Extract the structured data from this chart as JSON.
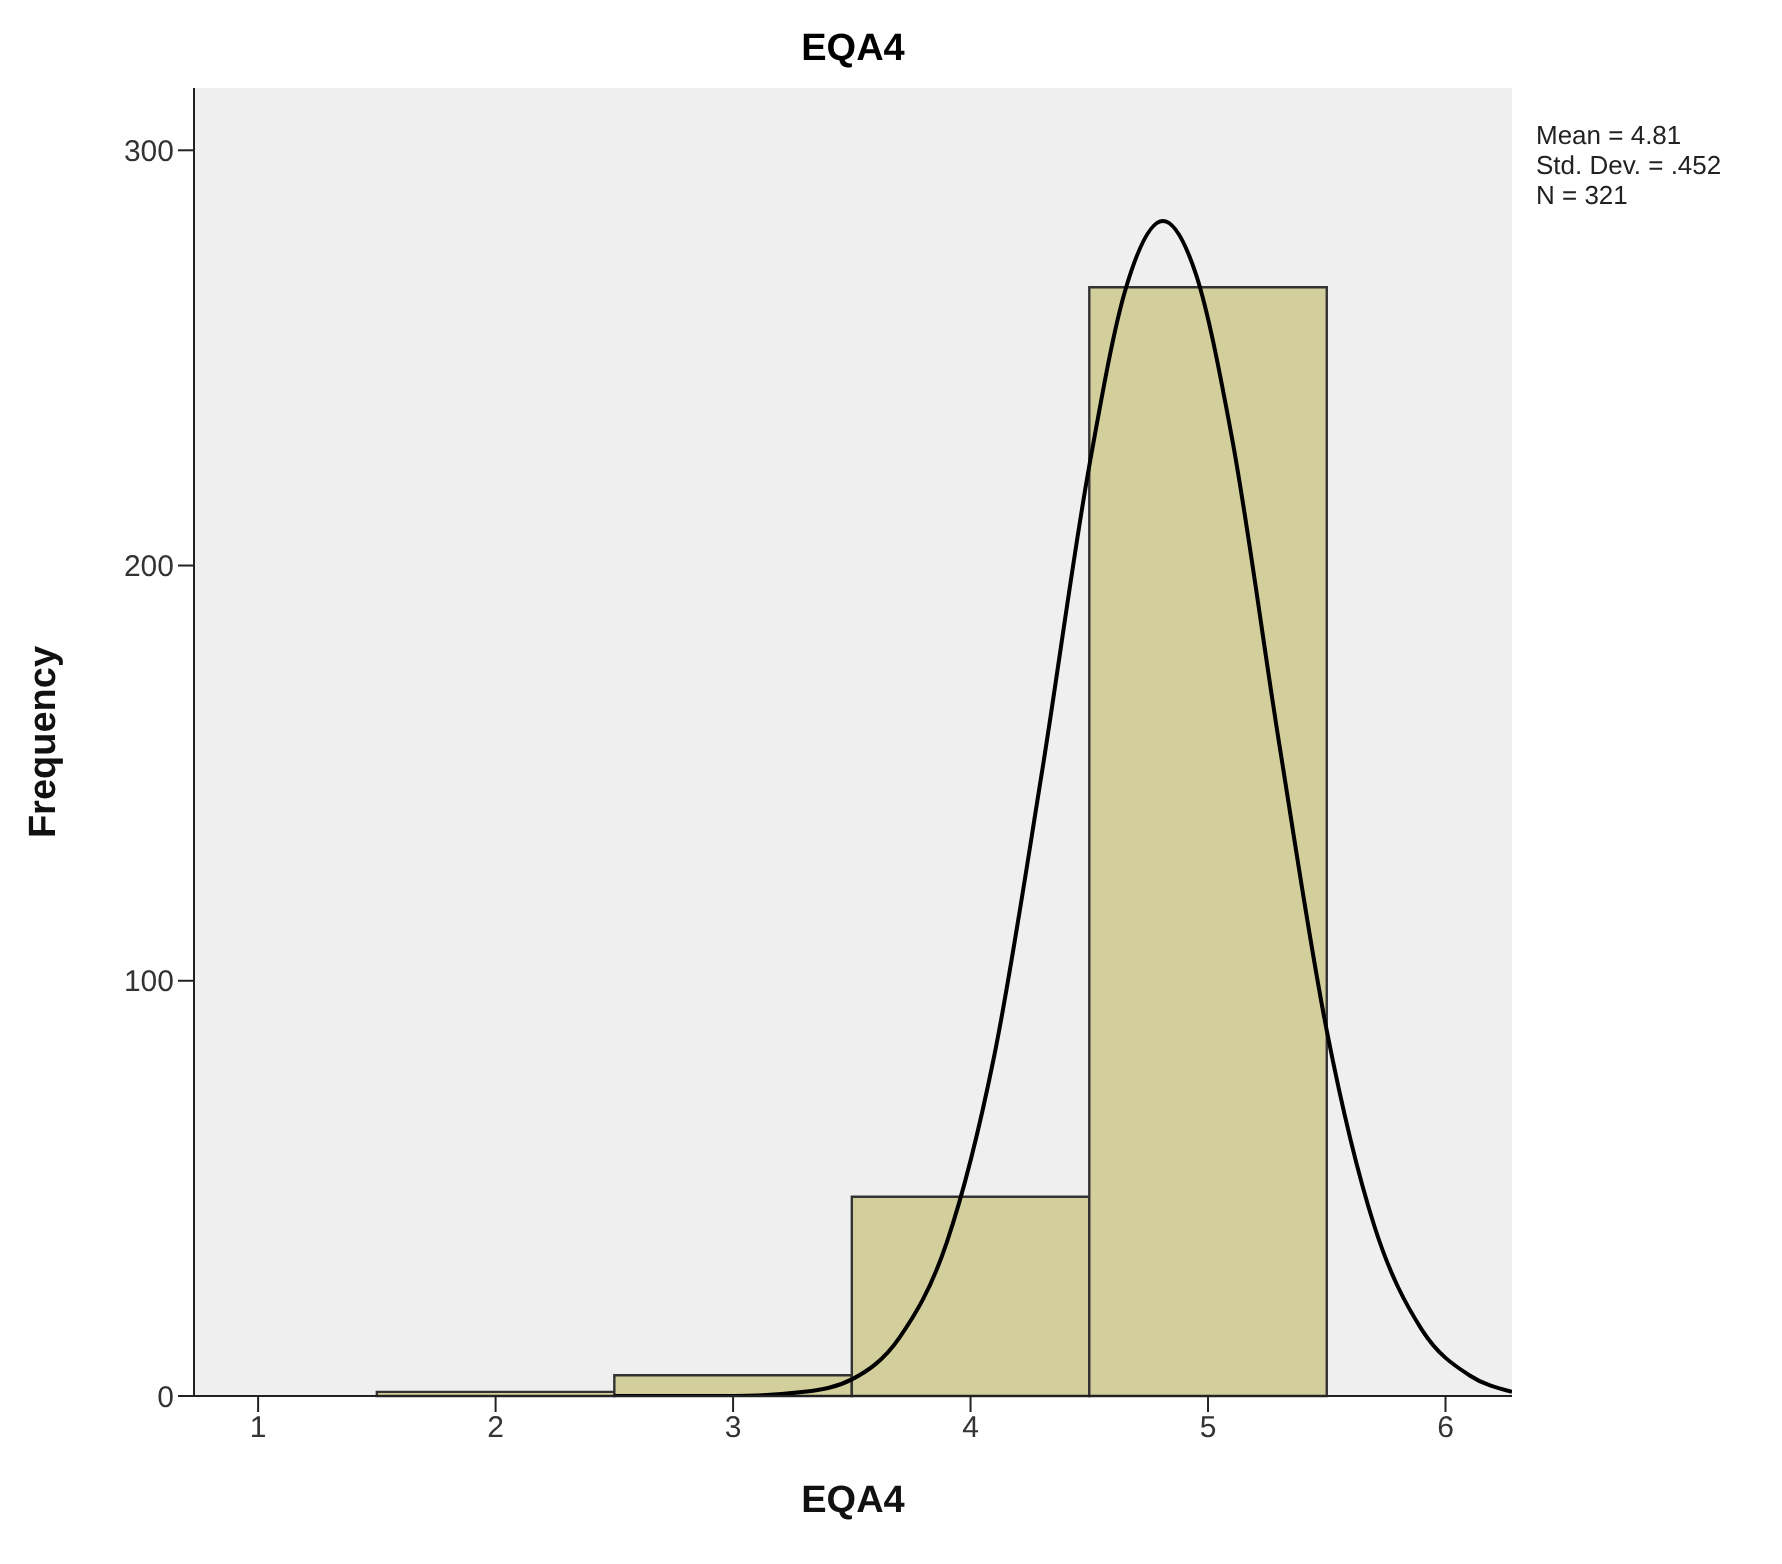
{
  "chart_data": {
    "type": "histogram",
    "title": "EQA4",
    "xlabel": "EQA4",
    "ylabel": "Frequency",
    "bins": [
      1.5,
      2.5,
      3.5,
      4.5,
      5.5
    ],
    "values": [
      1,
      5,
      48,
      267
    ],
    "color": "#d3cf9c",
    "xlim": [
      0.73,
      6.28
    ],
    "xticks": [
      1,
      2,
      3,
      4,
      5,
      6
    ],
    "ylim": [
      0,
      315
    ],
    "yticks": [
      0,
      100,
      200,
      300
    ],
    "series": [
      {
        "type": "line",
        "color": "#000000",
        "x": [
          2.5,
          3.0,
          3.3,
          3.5,
          3.7,
          3.9,
          4.1,
          4.3,
          4.5,
          4.65,
          4.81,
          4.95,
          5.1,
          5.3,
          5.5,
          5.7,
          5.9,
          6.1,
          6.28
        ],
        "values": [
          0,
          0,
          1,
          4,
          14,
          37,
          82,
          150,
          224,
          266,
          283,
          270,
          231,
          157,
          88,
          41,
          16,
          5,
          1
        ]
      }
    ],
    "annotations": [
      "Mean = 4.81",
      "Std. Dev. = .452",
      "N = 321"
    ]
  }
}
